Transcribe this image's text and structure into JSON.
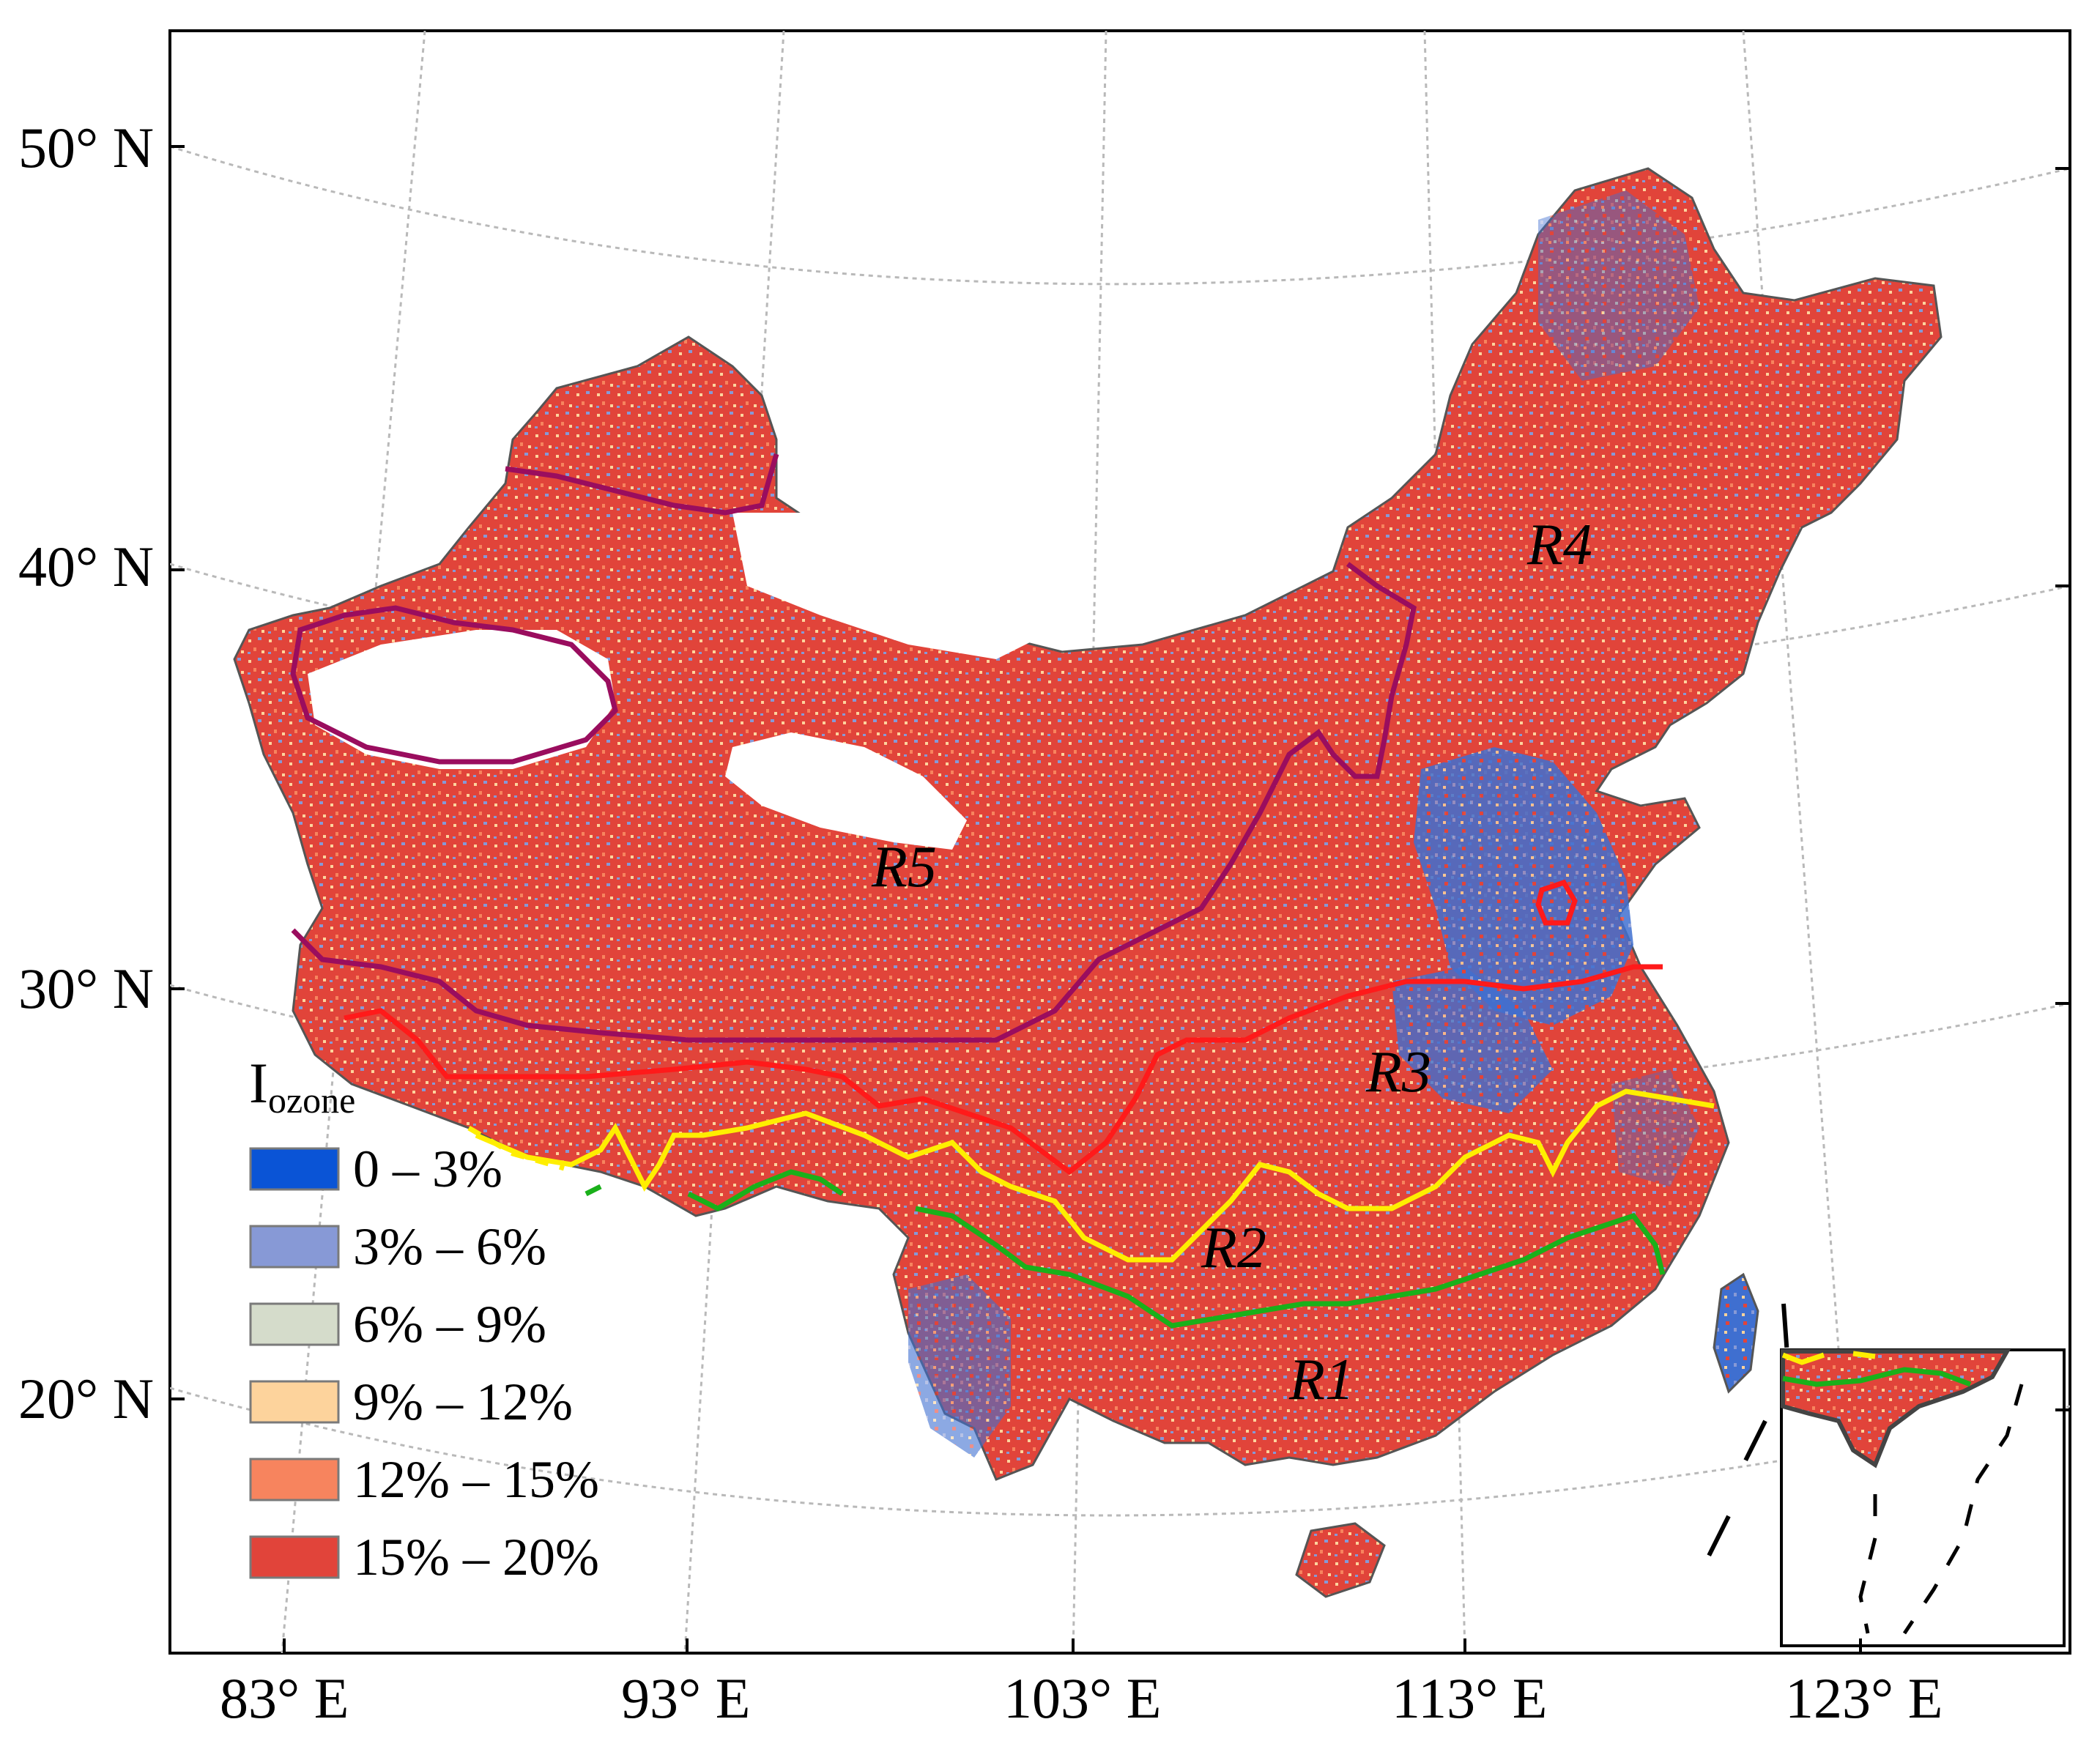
{
  "axis": {
    "latitude_labels": [
      "50° N",
      "40° N",
      "30° N",
      "20° N"
    ],
    "longitude_labels": [
      "83° E",
      "93° E",
      "103° E",
      "113° E",
      "123° E"
    ]
  },
  "regions": [
    "R1",
    "R2",
    "R3",
    "R4",
    "R5"
  ],
  "legend": {
    "title_main": "I",
    "title_sub": "ozone",
    "items": [
      {
        "label": "0 – 3%",
        "color": "#0a54d6"
      },
      {
        "label": "3% – 6%",
        "color": "#8799d6"
      },
      {
        "label": "6% – 9%",
        "color": "#d5dccb"
      },
      {
        "label": "9% – 12%",
        "color": "#fdd39c"
      },
      {
        "label": "12% – 15%",
        "color": "#f7845e"
      },
      {
        "label": "15% – 20%",
        "color": "#e1443a"
      }
    ]
  },
  "boundary_colors": {
    "R1_R2": "#1ab01a",
    "R2_R3": "#ffee00",
    "R3_R4R5": "#ff1a1a",
    "R4_R5": "#9a0d5e"
  },
  "map_fill_colors": {
    "dominant": "#e1443a",
    "blue_patches": "#3f6fd0"
  }
}
